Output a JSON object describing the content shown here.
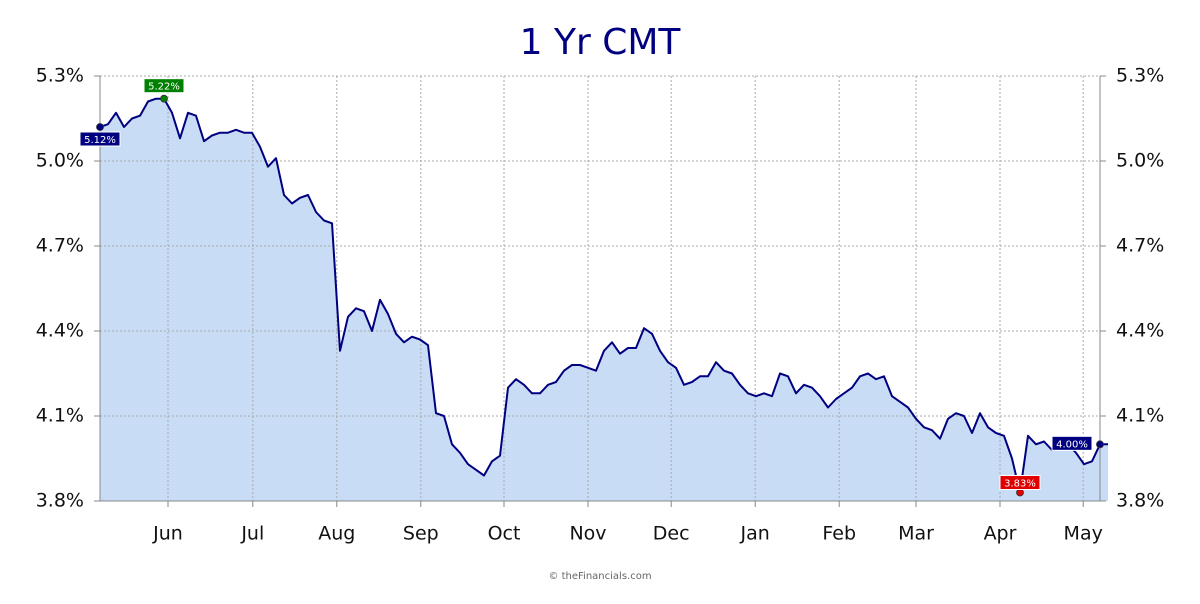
{
  "chart_data": {
    "type": "area",
    "title": "1 Yr CMT",
    "footer": "© theFinancials.com",
    "color": "#000080",
    "fill": "#c8dcf5",
    "values": [
      5.12,
      5.13,
      5.17,
      5.12,
      5.15,
      5.16,
      5.21,
      5.22,
      5.22,
      5.17,
      5.08,
      5.17,
      5.16,
      5.07,
      5.09,
      5.1,
      5.1,
      5.11,
      5.1,
      5.1,
      5.05,
      4.98,
      5.01,
      4.88,
      4.85,
      4.87,
      4.88,
      4.82,
      4.79,
      4.78,
      4.33,
      4.45,
      4.48,
      4.47,
      4.4,
      4.51,
      4.46,
      4.39,
      4.36,
      4.38,
      4.37,
      4.35,
      4.11,
      4.1,
      4.0,
      3.97,
      3.93,
      3.91,
      3.89,
      3.94,
      3.96,
      4.2,
      4.23,
      4.21,
      4.18,
      4.18,
      4.21,
      4.22,
      4.26,
      4.28,
      4.28,
      4.27,
      4.26,
      4.33,
      4.36,
      4.32,
      4.34,
      4.34,
      4.41,
      4.39,
      4.33,
      4.29,
      4.27,
      4.21,
      4.22,
      4.24,
      4.24,
      4.29,
      4.26,
      4.25,
      4.21,
      4.18,
      4.17,
      4.18,
      4.17,
      4.25,
      4.24,
      4.18,
      4.21,
      4.2,
      4.17,
      4.13,
      4.16,
      4.18,
      4.2,
      4.24,
      4.25,
      4.23,
      4.24,
      4.17,
      4.15,
      4.13,
      4.09,
      4.06,
      4.05,
      4.02,
      4.09,
      4.11,
      4.1,
      4.04,
      4.11,
      4.06,
      4.04,
      4.03,
      3.95,
      3.83,
      4.03,
      4.0,
      4.01,
      3.98,
      3.99,
      4.0,
      3.97,
      3.93,
      3.94,
      4.0,
      4.0
    ],
    "xlim": [
      0,
      125
    ],
    "xticks": [
      {
        "value": 8.5,
        "label": "Jun"
      },
      {
        "value": 19.1,
        "label": "Jul"
      },
      {
        "value": 29.6,
        "label": "Aug"
      },
      {
        "value": 40.1,
        "label": "Sep"
      },
      {
        "value": 50.5,
        "label": "Oct"
      },
      {
        "value": 61,
        "label": "Nov"
      },
      {
        "value": 71.4,
        "label": "Dec"
      },
      {
        "value": 81.9,
        "label": "Jan"
      },
      {
        "value": 92.4,
        "label": "Feb"
      },
      {
        "value": 102,
        "label": "Mar"
      },
      {
        "value": 112.5,
        "label": "Apr"
      },
      {
        "value": 122.9,
        "label": "May"
      }
    ],
    "ylim": [
      3.8,
      5.3
    ],
    "yticks": [
      {
        "value": 3.8,
        "label": "3.8%"
      },
      {
        "value": 4.1,
        "label": "4.1%"
      },
      {
        "value": 4.4,
        "label": "4.4%"
      },
      {
        "value": 4.7,
        "label": "4.7%"
      },
      {
        "value": 5.0,
        "label": "5.0%"
      },
      {
        "value": 5.3,
        "label": "5.3%"
      }
    ],
    "grid": true,
    "annotations": [
      {
        "x": 0,
        "value": 5.12,
        "label": "5.12%",
        "color": "#000080"
      },
      {
        "x": 8,
        "value": 5.22,
        "label": "5.22%",
        "color": "#008000"
      },
      {
        "x": 115,
        "value": 3.83,
        "label": "3.83%",
        "color": "#e00000"
      },
      {
        "x": 125,
        "value": 4.0,
        "label": "4.00%",
        "color": "#000080"
      }
    ]
  }
}
